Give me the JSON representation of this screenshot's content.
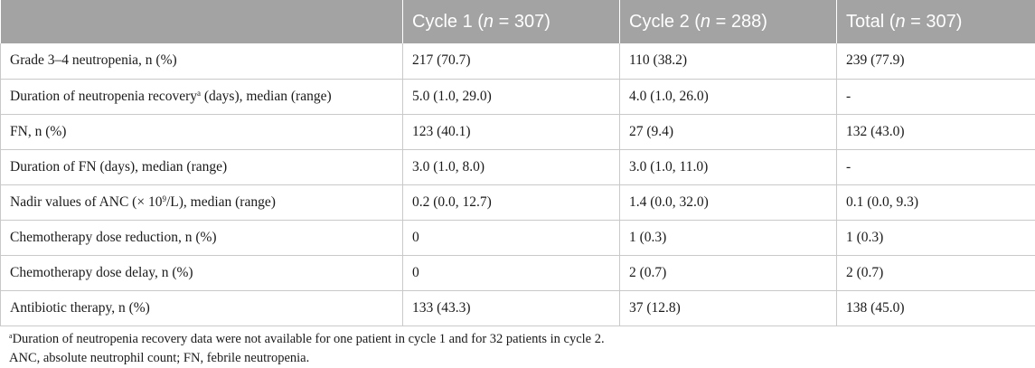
{
  "table": {
    "headers": [
      {
        "pre": "",
        "n": "",
        "post": ""
      },
      {
        "pre": "Cycle 1 (",
        "n": "n",
        "post": " = 307)"
      },
      {
        "pre": "Cycle 2 (",
        "n": "n",
        "post": " = 288)"
      },
      {
        "pre": "Total (",
        "n": "n",
        "post": " = 307)"
      }
    ],
    "rows": [
      {
        "label": "Grade 3–4 neutropenia, n (%)",
        "c1": "217 (70.7)",
        "c2": "110 (38.2)",
        "total": "239 (77.9)"
      },
      {
        "label_pre": "Duration of neutropenia recovery",
        "label_sup": "a",
        "label_post": " (days), median (range)",
        "c1": "5.0 (1.0, 29.0)",
        "c2": "4.0 (1.0, 26.0)",
        "total": "-"
      },
      {
        "label": "FN, n (%)",
        "c1": "123 (40.1)",
        "c2": "27 (9.4)",
        "total": "132 (43.0)"
      },
      {
        "label": "Duration of FN (days), median (range)",
        "c1": "3.0 (1.0, 8.0)",
        "c2": "3.0 (1.0, 11.0)",
        "total": "-"
      },
      {
        "label_pre": "Nadir values of ANC (× 10",
        "label_sup": "9",
        "label_post": "/L), median (range)",
        "c1": "0.2 (0.0, 12.7)",
        "c2": "1.4 (0.0, 32.0)",
        "total": "0.1 (0.0, 9.3)"
      },
      {
        "label": "Chemotherapy dose reduction, n (%)",
        "c1": "0",
        "c2": "1 (0.3)",
        "total": "1 (0.3)"
      },
      {
        "label": "Chemotherapy dose delay, n (%)",
        "c1": "0",
        "c2": "2 (0.7)",
        "total": "2 (0.7)"
      },
      {
        "label": "Antibiotic therapy, n (%)",
        "c1": "133 (43.3)",
        "c2": "37 (12.8)",
        "total": "138 (45.0)"
      }
    ]
  },
  "footnotes": {
    "a_marker": "a",
    "a_text": "Duration of neutropenia recovery data were not available for one patient in cycle 1 and for 32 patients in cycle 2.",
    "abbreviations": "ANC, absolute neutrophil count; FN, febrile neutropenia."
  },
  "colors": {
    "header_bg": "#a3a3a3",
    "header_text": "#ffffff",
    "grid_line": "#c9c9c9"
  }
}
